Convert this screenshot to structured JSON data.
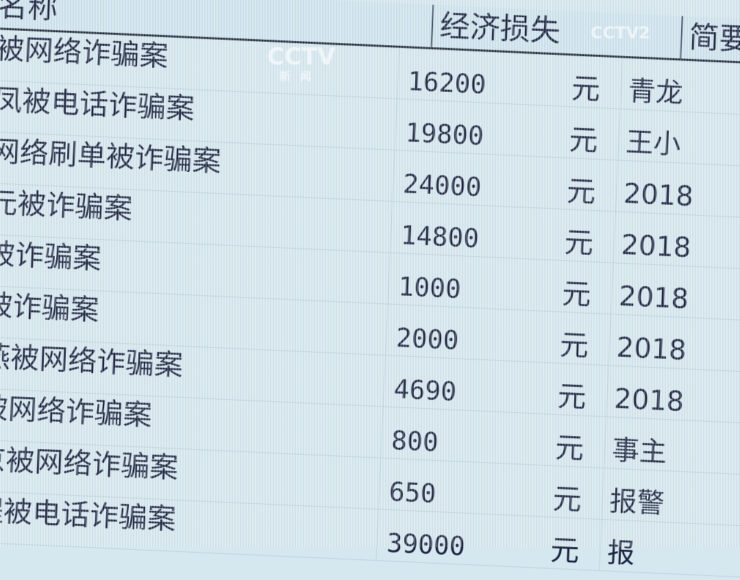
{
  "table": {
    "headers": {
      "name": "名称",
      "loss": "经济损失",
      "summary": "简要"
    },
    "rows": [
      {
        "name": "被网络诈骗案",
        "loss": "16200",
        "unit": "元",
        "summary": "青龙"
      },
      {
        "name": "凤被电话诈骗案",
        "loss": "19800",
        "unit": "元",
        "summary": "王小"
      },
      {
        "name": "网络刷单被诈骗案",
        "loss": "24000",
        "unit": "元",
        "summary": "2018"
      },
      {
        "name": "元被诈骗案",
        "loss": "14800",
        "unit": "元",
        "summary": "2018"
      },
      {
        "name": "被诈骗案",
        "loss": "1000",
        "unit": "元",
        "summary": "2018"
      },
      {
        "name": "被诈骗案",
        "loss": "2000",
        "unit": "元",
        "summary": "2018"
      },
      {
        "name": "燕被网络诈骗案",
        "loss": "4690",
        "unit": "元",
        "summary": "2018"
      },
      {
        "name": "被网络诈骗案",
        "loss": "800",
        "unit": "元",
        "summary": "事主"
      },
      {
        "name": "京被网络诈骗案",
        "loss": "650",
        "unit": "元",
        "summary": "报警"
      },
      {
        "name": "程被电话诈骗案",
        "loss": "39000",
        "unit": "元",
        "summary": "报"
      }
    ]
  },
  "watermarks": {
    "left": "CCTV",
    "left_sub": "新闻",
    "right": "CCTV2"
  },
  "colors": {
    "background": "#d6e8ef",
    "text": "#1c2440"
  }
}
